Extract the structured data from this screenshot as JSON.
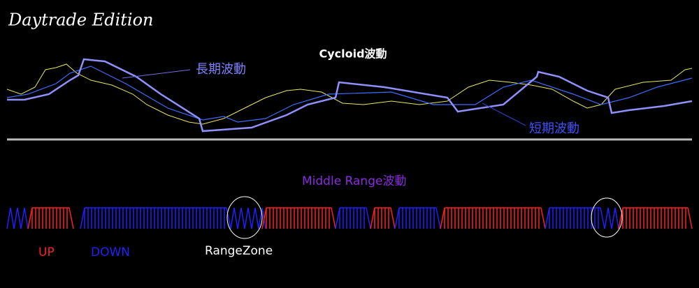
{
  "header": {
    "title": "Daytrade Edition"
  },
  "top_panel": {
    "title": "Cycloid波動",
    "long_label": "長期波動",
    "short_label": "短期波動"
  },
  "bottom_panel": {
    "title": "Middle Range波動",
    "legend": {
      "up": "UP",
      "down": "DOWN",
      "range": "RangeZone"
    }
  }
}
